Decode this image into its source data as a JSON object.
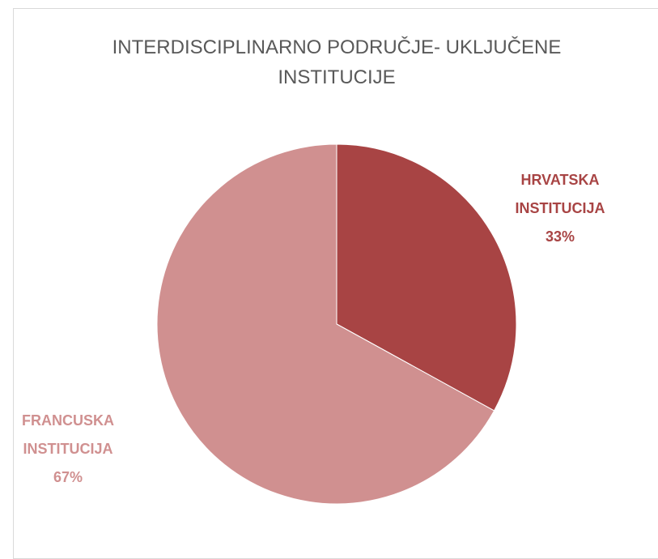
{
  "chart_data": {
    "type": "pie",
    "title": "INTERDISCIPLINARNO PODRUČJE- UKLJUČENE INSTITUCIJE",
    "categories": [
      "HRVATSKA INSTITUCIJA",
      "FRANCUSKA INSTITUCIJA"
    ],
    "values": [
      33,
      67
    ],
    "value_labels": [
      "33%",
      "67%"
    ],
    "colors": [
      "#a84444",
      "#d09090"
    ]
  }
}
